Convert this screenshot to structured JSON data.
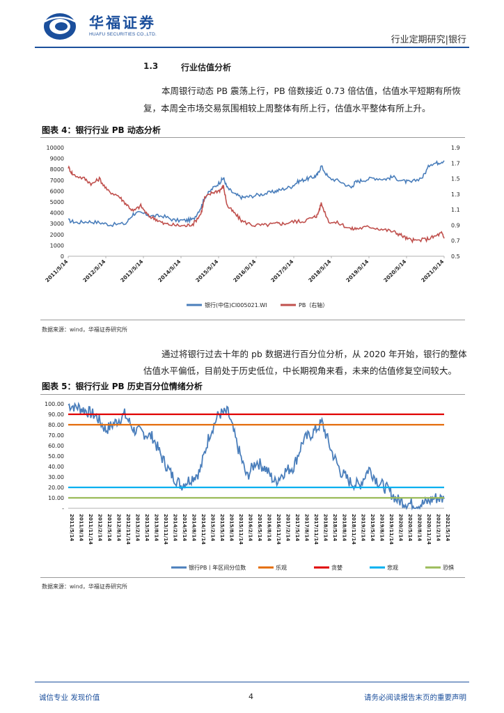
{
  "header": {
    "company_cn": "华福证券",
    "company_en": "HUAFU SECURITIES CO.,LTD.",
    "report_type": "行业定期研究|银行"
  },
  "section": {
    "number": "1.3",
    "title": "行业估值分析",
    "para1_line1": "本周银行动态 PB 震荡上行，PB 倍数接近 0.73 倍估值，估值水平短期有所恢",
    "para1_line2": "复，本周全市场交易氛围相较上周整体有所上行，估值水平整体有所上升。",
    "para2_line1": "通过将银行过去十年的 pb 数据进行百分位分析，从 2020 年开始，银行的整体",
    "para2_line2": "估值水平偏低，目前处于历史低位，中长期视角来看，未来的估值修复空间较大。"
  },
  "figure4": {
    "title": "图表 4：银行行业 PB 动态分析",
    "source": "数据来源：wind，华福证券研究所"
  },
  "figure5": {
    "title": "图表 5：银行行业 PB 历史百分位情绪分析",
    "source": "数据来源：wind，华福证券研究所"
  },
  "chart_data": [
    {
      "type": "line",
      "x_ticks": [
        "2011/5/14",
        "2012/5/14",
        "2013/5/14",
        "2014/5/14",
        "2015/5/14",
        "2016/5/14",
        "2017/5/14",
        "2018/5/14",
        "2019/5/14",
        "2020/5/14",
        "2021/5/14"
      ],
      "ylim_left": [
        0,
        10000
      ],
      "yticks_left": [
        "10000",
        "9000",
        "8000",
        "7000",
        "6000",
        "5000",
        "4000",
        "3000",
        "2000",
        "1000",
        "0"
      ],
      "ylim_right": [
        0.5,
        1.9
      ],
      "yticks_right": [
        "1.9",
        "1.7",
        "1.5",
        "1.3",
        "1.1",
        "0.9",
        "0.7",
        "0.5"
      ],
      "legend_position": "bottom",
      "series": [
        {
          "name": "银行(中信)CI005021.WI",
          "axis": "left",
          "color": "#4a7ebb",
          "x": [
            2011.37,
            2011.6,
            2011.9,
            2012.2,
            2012.5,
            2012.9,
            2013.1,
            2013.3,
            2013.6,
            2013.9,
            2014.2,
            2014.5,
            2014.7,
            2014.9,
            2015.0,
            2015.2,
            2015.4,
            2015.5,
            2015.6,
            2015.8,
            2016.0,
            2016.2,
            2016.5,
            2016.8,
            2017.0,
            2017.3,
            2017.5,
            2017.7,
            2017.9,
            2018.0,
            2018.1,
            2018.3,
            2018.6,
            2018.9,
            2019.0,
            2019.2,
            2019.5,
            2019.8,
            2020.0,
            2020.3,
            2020.5,
            2020.8,
            2021.0,
            2021.2,
            2021.37
          ],
          "y": [
            3300,
            3100,
            3200,
            3100,
            2900,
            3000,
            3900,
            4000,
            3700,
            3700,
            3300,
            3300,
            3400,
            4500,
            5400,
            6200,
            6800,
            7200,
            6300,
            5700,
            5400,
            5500,
            5700,
            5900,
            6100,
            6400,
            6900,
            7100,
            7300,
            7500,
            8300,
            7200,
            6900,
            6300,
            6800,
            7000,
            7200,
            7100,
            7300,
            6900,
            6800,
            7300,
            8500,
            8600,
            8800
          ]
        },
        {
          "name": "PB（右轴）",
          "axis": "right",
          "color": "#c0504d",
          "x": [
            2011.37,
            2011.5,
            2011.8,
            2012.0,
            2012.2,
            2012.4,
            2012.7,
            2012.9,
            2013.1,
            2013.3,
            2013.5,
            2013.7,
            2013.9,
            2014.2,
            2014.5,
            2014.7,
            2014.9,
            2015.0,
            2015.2,
            2015.4,
            2015.5,
            2015.6,
            2015.8,
            2016.0,
            2016.3,
            2016.6,
            2016.9,
            2017.1,
            2017.4,
            2017.6,
            2017.9,
            2018.0,
            2018.1,
            2018.3,
            2018.6,
            2018.9,
            2019.1,
            2019.4,
            2019.7,
            2020.0,
            2020.2,
            2020.4,
            2020.6,
            2020.9,
            2021.1,
            2021.3,
            2021.37
          ],
          "y": [
            1.65,
            1.55,
            1.5,
            1.43,
            1.5,
            1.35,
            1.28,
            1.18,
            1.08,
            1.15,
            1.02,
            0.98,
            0.92,
            0.9,
            0.89,
            0.92,
            1.05,
            1.25,
            1.32,
            1.35,
            1.4,
            1.15,
            1.05,
            0.95,
            0.9,
            0.9,
            0.92,
            0.92,
            0.95,
            0.95,
            1.0,
            1.03,
            1.18,
            0.95,
            0.92,
            0.85,
            0.86,
            0.88,
            0.85,
            0.82,
            0.78,
            0.72,
            0.7,
            0.72,
            0.75,
            0.8,
            0.73
          ]
        }
      ]
    },
    {
      "type": "line",
      "x_ticks": [
        "2011/5/14",
        "2011/8/14",
        "2011/11/14",
        "2012/2/14",
        "2012/5/14",
        "2012/8/14",
        "2012/11/14",
        "2013/2/14",
        "2013/5/14",
        "2013/8/14",
        "2013/11/14",
        "2014/2/14",
        "2014/5/14",
        "2014/8/14",
        "2014/11/14",
        "2015/2/14",
        "2015/5/14",
        "2015/8/14",
        "2015/11/14",
        "2016/2/14",
        "2016/5/14",
        "2016/8/14",
        "2016/11/14",
        "2017/2/14",
        "2017/5/14",
        "2017/8/14",
        "2017/11/14",
        "2018/2/14",
        "2018/5/14",
        "2018/8/14",
        "2018/11/14",
        "2019/2/14",
        "2019/5/14",
        "2019/8/14",
        "2019/11/14",
        "2020/2/14",
        "2020/5/14",
        "2020/8/14",
        "2020/11/14",
        "2021/2/14",
        "2021/5/14"
      ],
      "ylim": [
        0,
        100
      ],
      "yticks": [
        "100.00",
        "90.00",
        "80.00",
        "70.00",
        "60.00",
        "50.00",
        "40.00",
        "30.00",
        "20.00",
        "10.00",
        "-"
      ],
      "legend_position": "bottom",
      "series": [
        {
          "name": "银行PB丨年区间分位数",
          "color": "#4a7ebb",
          "x": [
            0,
            1,
            2,
            3,
            4,
            5,
            6,
            7,
            8,
            9,
            10,
            11,
            12,
            13,
            14,
            15,
            16,
            17,
            18,
            19,
            20,
            21,
            22,
            23,
            24,
            25,
            26,
            27,
            28,
            29,
            30,
            31,
            32,
            33,
            34,
            35,
            36,
            37,
            38,
            39,
            40
          ],
          "y": [
            99,
            97,
            93,
            88,
            75,
            82,
            90,
            75,
            72,
            68,
            48,
            32,
            22,
            28,
            35,
            70,
            90,
            92,
            60,
            30,
            45,
            38,
            25,
            35,
            40,
            65,
            72,
            82,
            55,
            35,
            25,
            22,
            38,
            25,
            18,
            8,
            5,
            3,
            5,
            10,
            9
          ]
        },
        {
          "name": "乐观",
          "color": "#e46c0a",
          "constant": 80
        },
        {
          "name": "贪婪",
          "color": "#e00000",
          "constant": 90
        },
        {
          "name": "悲观",
          "color": "#00b0f0",
          "constant": 20
        },
        {
          "name": "恐惧",
          "color": "#9bbb59",
          "constant": 10
        }
      ]
    }
  ],
  "footer": {
    "left": "诚信专业  发现价值",
    "page": "4",
    "right": "请务必阅读报告末页的重要声明"
  }
}
